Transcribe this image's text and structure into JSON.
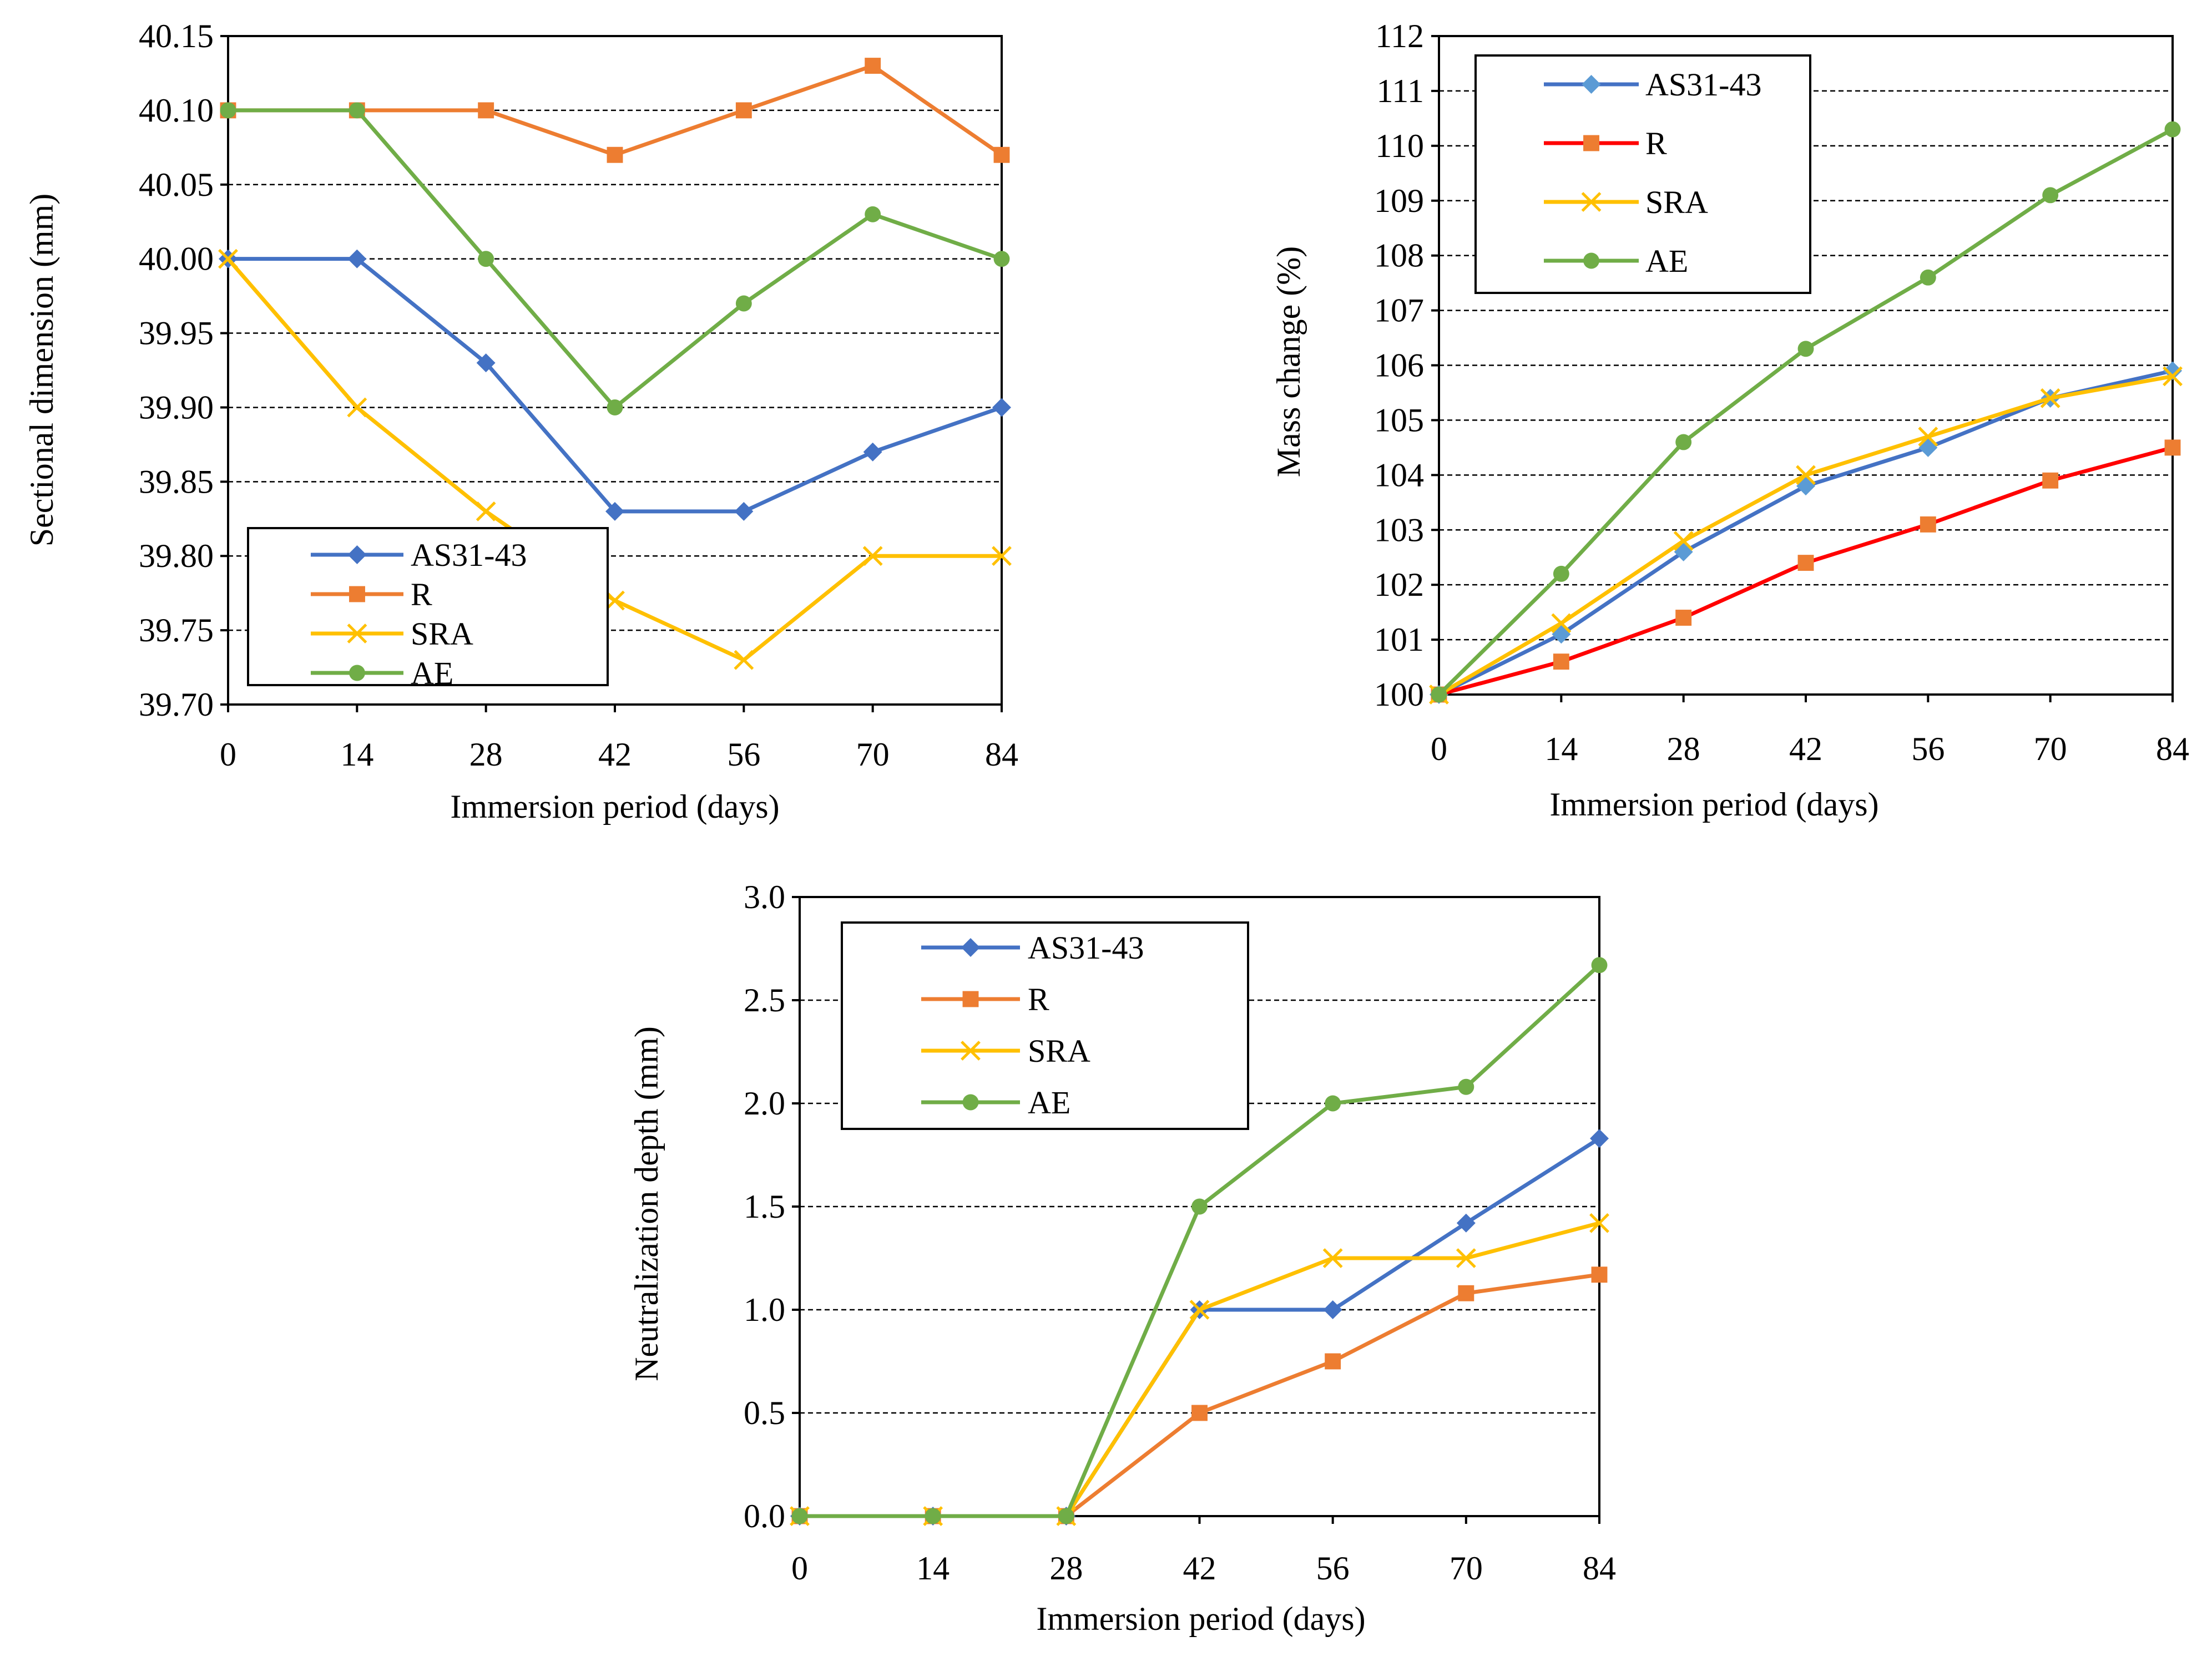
{
  "figure": {
    "description_free": true
  },
  "chart_data": [
    {
      "id": "sectional",
      "type": "line",
      "title": "",
      "xlabel": "Immersion period (days)",
      "ylabel": "Sectional dimension (mm)",
      "x": [
        0,
        14,
        28,
        42,
        56,
        70,
        84
      ],
      "x_ticks": [
        "0",
        "14",
        "28",
        "42",
        "56",
        "70",
        "84"
      ],
      "xlim": [
        0,
        84
      ],
      "ylim": [
        39.7,
        40.15
      ],
      "y_ticks": [
        "39.70",
        "39.75",
        "39.80",
        "39.85",
        "39.90",
        "39.95",
        "40.00",
        "40.05",
        "40.10",
        "40.15"
      ],
      "y_tick_values": [
        39.7,
        39.75,
        39.8,
        39.85,
        39.9,
        39.95,
        40.0,
        40.05,
        40.1,
        40.15
      ],
      "grid": "horizontal-dashed",
      "legend_position": "bottom-left",
      "series": [
        {
          "name": "AS31-43",
          "color": "#4472C4",
          "marker": "diamond",
          "values": [
            40.0,
            40.0,
            39.93,
            39.83,
            39.83,
            39.87,
            39.9
          ]
        },
        {
          "name": "R",
          "color": "#ED7D31",
          "marker": "square",
          "values": [
            40.1,
            40.1,
            40.1,
            40.07,
            40.1,
            40.13,
            40.07
          ]
        },
        {
          "name": "SRA",
          "color": "#FFC000",
          "marker": "x",
          "values": [
            40.0,
            39.9,
            39.83,
            39.77,
            39.73,
            39.8,
            39.8
          ]
        },
        {
          "name": "AE",
          "color": "#70AD47",
          "marker": "circle",
          "values": [
            40.1,
            40.1,
            40.0,
            39.9,
            39.97,
            40.03,
            40.0
          ]
        }
      ]
    },
    {
      "id": "mass",
      "type": "line",
      "title": "",
      "xlabel": "Immersion period (days)",
      "ylabel": "Mass change (%)",
      "x": [
        0,
        14,
        28,
        42,
        56,
        70,
        84
      ],
      "x_ticks": [
        "0",
        "14",
        "28",
        "42",
        "56",
        "70",
        "84"
      ],
      "xlim": [
        0,
        84
      ],
      "ylim": [
        100,
        112
      ],
      "y_ticks": [
        "100",
        "101",
        "102",
        "103",
        "104",
        "105",
        "106",
        "107",
        "108",
        "109",
        "110",
        "111",
        "112"
      ],
      "y_tick_values": [
        100,
        101,
        102,
        103,
        104,
        105,
        106,
        107,
        108,
        109,
        110,
        111,
        112
      ],
      "grid": "horizontal-dashed",
      "legend_position": "top-left",
      "series": [
        {
          "name": "AS31-43",
          "color": "#4472C4",
          "marker_color": "#5B9BD5",
          "marker": "diamond",
          "values": [
            100.0,
            101.1,
            102.6,
            103.8,
            104.5,
            105.4,
            105.9
          ]
        },
        {
          "name": "R",
          "color": "#FF0000",
          "marker_color": "#ED7D31",
          "marker": "square",
          "values": [
            100.0,
            100.6,
            101.4,
            102.4,
            103.1,
            103.9,
            104.5
          ]
        },
        {
          "name": "SRA",
          "color": "#FFC000",
          "marker": "x",
          "values": [
            100.0,
            101.3,
            102.8,
            104.0,
            104.7,
            105.4,
            105.8
          ]
        },
        {
          "name": "AE",
          "color": "#70AD47",
          "marker": "circle",
          "values": [
            100.0,
            102.2,
            104.6,
            106.3,
            107.6,
            109.1,
            110.3
          ]
        }
      ]
    },
    {
      "id": "neutral",
      "type": "line",
      "title": "",
      "xlabel": "Immersion period (days)",
      "ylabel": "Neutralization depth (mm)",
      "x": [
        0,
        14,
        28,
        42,
        56,
        70,
        84
      ],
      "x_ticks": [
        "0",
        "14",
        "28",
        "42",
        "56",
        "70",
        "84"
      ],
      "xlim": [
        0,
        84
      ],
      "ylim": [
        0.0,
        3.0
      ],
      "y_ticks": [
        "0.0",
        "0.5",
        "1.0",
        "1.5",
        "2.0",
        "2.5",
        "3.0"
      ],
      "y_tick_values": [
        0.0,
        0.5,
        1.0,
        1.5,
        2.0,
        2.5,
        3.0
      ],
      "grid": "horizontal-dashed",
      "legend_position": "top-left",
      "series": [
        {
          "name": "AS31-43",
          "color": "#4472C4",
          "marker": "diamond",
          "values": [
            0.0,
            0.0,
            0.0,
            1.0,
            1.0,
            1.42,
            1.83
          ]
        },
        {
          "name": "R",
          "color": "#ED7D31",
          "marker": "square",
          "values": [
            0.0,
            0.0,
            0.0,
            0.5,
            0.75,
            1.08,
            1.17
          ]
        },
        {
          "name": "SRA",
          "color": "#FFC000",
          "marker": "x",
          "values": [
            0.0,
            0.0,
            0.0,
            1.0,
            1.25,
            1.25,
            1.42
          ]
        },
        {
          "name": "AE",
          "color": "#70AD47",
          "marker": "circle",
          "values": [
            0.0,
            0.0,
            0.0,
            1.5,
            2.0,
            2.08,
            2.67
          ]
        }
      ]
    }
  ]
}
